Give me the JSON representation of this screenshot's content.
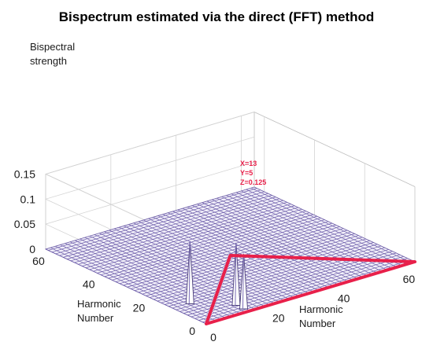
{
  "chart_data": {
    "type": "surface-3d",
    "title": "Bispectrum estimated via the direct (FFT) method",
    "zlabel": [
      "Bispectral",
      "strength"
    ],
    "xlabel": [
      "Harmonic",
      "Number"
    ],
    "ylabel": [
      "Harmonic",
      "Number"
    ],
    "xlim": [
      0,
      64
    ],
    "ylim": [
      0,
      64
    ],
    "zlim": [
      0,
      0.15
    ],
    "zticks": [
      {
        "value": 0,
        "label": "0"
      },
      {
        "value": 0.05,
        "label": "0.05"
      },
      {
        "value": 0.1,
        "label": "0.1"
      },
      {
        "value": 0.15,
        "label": "0.15"
      }
    ],
    "xticks": [
      {
        "value": 0,
        "label": "0"
      },
      {
        "value": 20,
        "label": "20"
      },
      {
        "value": 40,
        "label": "40"
      },
      {
        "value": 60,
        "label": "60"
      }
    ],
    "yticks": [
      {
        "value": 0,
        "label": "0"
      },
      {
        "value": 20,
        "label": "20"
      },
      {
        "value": 40,
        "label": "40"
      },
      {
        "value": 60,
        "label": "60"
      }
    ],
    "peaks": [
      {
        "x": 13,
        "y": 5,
        "z": 0.125
      },
      {
        "x": 5,
        "y": 13,
        "z": 0.125
      },
      {
        "x": 13,
        "y": 2,
        "z": 0.11
      }
    ],
    "annotation": [
      "X=13",
      "Y=5",
      "Z=0.125"
    ],
    "grid": true,
    "colors": {
      "mesh": "#6a5aa8",
      "highlight": "#e8204a",
      "peak_fill": "#ffffff"
    }
  }
}
